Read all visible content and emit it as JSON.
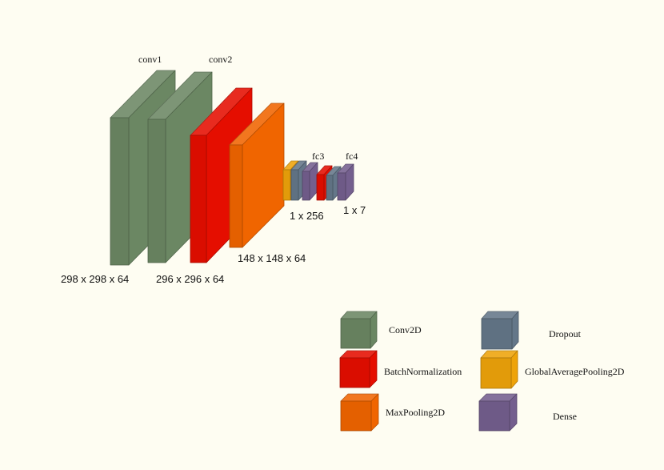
{
  "colors": {
    "conv2d": "#6b8763",
    "batchnorm": "#e50e00",
    "maxpool": "#f06500",
    "dropout": "#647789",
    "gap": "#eea30a",
    "dense": "#745f8e"
  },
  "layers": {
    "conv1": {
      "name": "conv1",
      "shape": "298 x 298 x 64"
    },
    "conv2": {
      "name": "conv2",
      "shape": "296 x 296 x 64"
    },
    "pool": {
      "shape": "148 x 148 x 64"
    },
    "fc3": {
      "name": "fc3",
      "shape": "1 x 256"
    },
    "fc4": {
      "name": "fc4",
      "shape": "1 x 7"
    }
  },
  "legend": {
    "conv2d": "Conv2D",
    "dropout": "Dropout",
    "batchnorm": "BatchNormalization",
    "gap": "GlobalAveragePooling2D",
    "maxpool": "MaxPooling2D",
    "dense": "Dense"
  }
}
